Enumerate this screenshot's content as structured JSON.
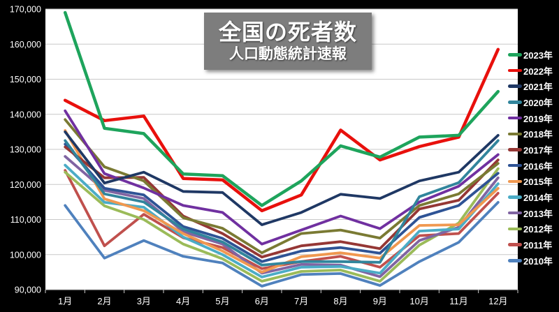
{
  "chart_data": {
    "type": "line",
    "title": "全国の死者数",
    "subtitle": "人口動態統計速報",
    "categories": [
      "1月",
      "2月",
      "3月",
      "4月",
      "5月",
      "6月",
      "7月",
      "8月",
      "9月",
      "10月",
      "11月",
      "12月"
    ],
    "y_axis": {
      "min": 90000,
      "max": 170000,
      "step": 10000,
      "tick_labels": [
        "170,000",
        "160,000",
        "150,000",
        "140,000",
        "130,000",
        "120,000",
        "110,000",
        "100,000",
        "90,000"
      ]
    },
    "grid": true,
    "legend_position": "right",
    "background_color": "#000000",
    "plot_background_color": "#ffffff",
    "gridline_color": "#c8c8c8",
    "series": [
      {
        "name": "2023年",
        "color": "#1ea45c",
        "values": [
          169000,
          136000,
          134500,
          123000,
          122500,
          114000,
          121000,
          131000,
          127800,
          133500,
          134000,
          146500
        ]
      },
      {
        "name": "2022年",
        "color": "#e8100c",
        "values": [
          144000,
          138200,
          139500,
          121700,
          121300,
          112500,
          117000,
          135500,
          127000,
          130800,
          133500,
          158500
        ]
      },
      {
        "name": "2021年",
        "color": "#1f3864",
        "values": [
          135000,
          120400,
          123500,
          118000,
          117700,
          108500,
          112000,
          117200,
          116000,
          121000,
          123500,
          134000
        ]
      },
      {
        "name": "2020年",
        "color": "#31859c",
        "values": [
          132500,
          117300,
          115000,
          107300,
          103600,
          97000,
          98000,
          98000,
          97800,
          116500,
          120500,
          132500
        ]
      },
      {
        "name": "2019年",
        "color": "#7030a0",
        "values": [
          141000,
          123100,
          119000,
          114000,
          112000,
          103000,
          107000,
          111000,
          107400,
          115000,
          119500,
          128500
        ]
      },
      {
        "name": "2018年",
        "color": "#7a7a33",
        "values": [
          138500,
          125000,
          121000,
          110500,
          107500,
          100500,
          106000,
          107000,
          104700,
          114000,
          117300,
          126000
        ]
      },
      {
        "name": "2017年",
        "color": "#953735",
        "values": [
          130700,
          121900,
          122000,
          111000,
          106000,
          99300,
          102500,
          103700,
          101700,
          113000,
          115500,
          127000
        ]
      },
      {
        "name": "2016年",
        "color": "#2e5395",
        "values": [
          131500,
          118900,
          117000,
          108000,
          104600,
          98000,
          101000,
          102000,
          100400,
          110600,
          114000,
          123200
        ]
      },
      {
        "name": "2015年",
        "color": "#f09850",
        "values": [
          135400,
          115900,
          112500,
          106000,
          101000,
          95000,
          99400,
          100500,
          99000,
          108300,
          108500,
          118900
        ]
      },
      {
        "name": "2014年",
        "color": "#4bacc6",
        "values": [
          125500,
          114900,
          113500,
          105000,
          100000,
          93600,
          96400,
          96600,
          94700,
          106700,
          107300,
          120200
        ]
      },
      {
        "name": "2013年",
        "color": "#8064a2",
        "values": [
          128000,
          118300,
          116000,
          106500,
          103000,
          94700,
          97200,
          97000,
          93700,
          104000,
          107800,
          121900
        ]
      },
      {
        "name": "2012年",
        "color": "#9bbb59",
        "values": [
          123500,
          113900,
          110000,
          103000,
          98800,
          92400,
          95200,
          95600,
          92400,
          102700,
          109000,
          124500
        ]
      },
      {
        "name": "2011年",
        "color": "#c0504d",
        "values": [
          124000,
          102500,
          111500,
          104800,
          102000,
          96000,
          98000,
          99500,
          96400,
          105400,
          106000,
          117500
        ]
      },
      {
        "name": "2010年",
        "color": "#4f81bd",
        "values": [
          114000,
          99000,
          104000,
          99500,
          97600,
          91000,
          94300,
          94600,
          91200,
          98000,
          103500,
          114900
        ]
      }
    ]
  }
}
